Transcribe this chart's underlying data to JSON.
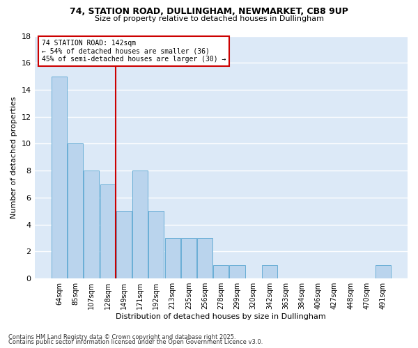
{
  "title1": "74, STATION ROAD, DULLINGHAM, NEWMARKET, CB8 9UP",
  "title2": "Size of property relative to detached houses in Dullingham",
  "xlabel": "Distribution of detached houses by size in Dullingham",
  "ylabel": "Number of detached properties",
  "categories": [
    "64sqm",
    "85sqm",
    "107sqm",
    "128sqm",
    "149sqm",
    "171sqm",
    "192sqm",
    "213sqm",
    "235sqm",
    "256sqm",
    "278sqm",
    "299sqm",
    "320sqm",
    "342sqm",
    "363sqm",
    "384sqm",
    "406sqm",
    "427sqm",
    "448sqm",
    "470sqm",
    "491sqm"
  ],
  "values": [
    15,
    10,
    8,
    7,
    5,
    8,
    5,
    3,
    3,
    3,
    1,
    1,
    0,
    1,
    0,
    0,
    0,
    0,
    0,
    0,
    1
  ],
  "bar_color": "#bad4ed",
  "bar_edge_color": "#6aaed6",
  "background_color": "#dce9f7",
  "grid_color": "#ffffff",
  "vline_x": 3.5,
  "vline_color": "#cc0000",
  "annotation_text": "74 STATION ROAD: 142sqm\n← 54% of detached houses are smaller (36)\n45% of semi-detached houses are larger (30) →",
  "annotation_box_color": "#cc0000",
  "ylim": [
    0,
    18
  ],
  "yticks": [
    0,
    2,
    4,
    6,
    8,
    10,
    12,
    14,
    16,
    18
  ],
  "footer1": "Contains HM Land Registry data © Crown copyright and database right 2025.",
  "footer2": "Contains public sector information licensed under the Open Government Licence v3.0."
}
